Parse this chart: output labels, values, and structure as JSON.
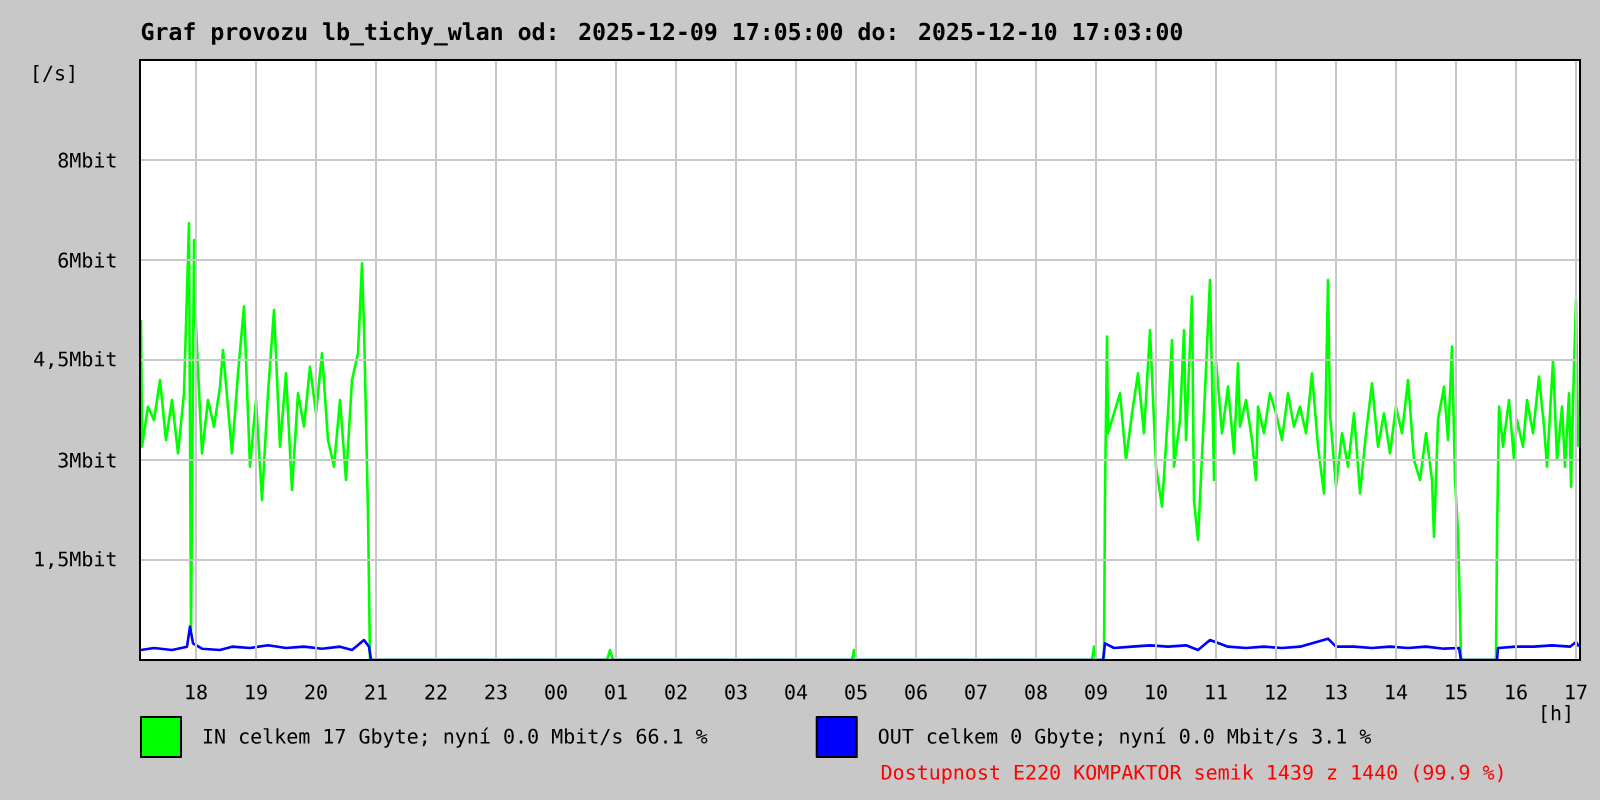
{
  "chart_data": {
    "type": "line",
    "title": "Graf provozu lb_tichy_wlan od: 2025-12-09 17:05:00 do: 2025-12-10 17:03:00",
    "xlabel": "[h]",
    "ylabel": "[/s]",
    "xlim": [
      "2025-12-09T17:04",
      "2025-12-10T17:04"
    ],
    "xticks": [
      {
        "value": "2025-12-09T18:00",
        "label": "18"
      },
      {
        "value": "2025-12-09T19:00",
        "label": "19"
      },
      {
        "value": "2025-12-09T20:00",
        "label": "20"
      },
      {
        "value": "2025-12-09T21:00",
        "label": "21"
      },
      {
        "value": "2025-12-09T22:00",
        "label": "22"
      },
      {
        "value": "2025-12-09T23:00",
        "label": "23"
      },
      {
        "value": "2025-12-10T00:00",
        "label": "00"
      },
      {
        "value": "2025-12-10T01:00",
        "label": "01"
      },
      {
        "value": "2025-12-10T02:00",
        "label": "02"
      },
      {
        "value": "2025-12-10T03:00",
        "label": "03"
      },
      {
        "value": "2025-12-10T04:00",
        "label": "04"
      },
      {
        "value": "2025-12-10T05:00",
        "label": "05"
      },
      {
        "value": "2025-12-10T06:00",
        "label": "06"
      },
      {
        "value": "2025-12-10T07:00",
        "label": "07"
      },
      {
        "value": "2025-12-10T08:00",
        "label": "08"
      },
      {
        "value": "2025-12-10T09:00",
        "label": "09"
      },
      {
        "value": "2025-12-10T10:00",
        "label": "10"
      },
      {
        "value": "2025-12-10T11:00",
        "label": "11"
      },
      {
        "value": "2025-12-10T12:00",
        "label": "12"
      },
      {
        "value": "2025-12-10T13:00",
        "label": "13"
      },
      {
        "value": "2025-12-10T14:00",
        "label": "14"
      },
      {
        "value": "2025-12-10T15:00",
        "label": "15"
      },
      {
        "value": "2025-12-10T16:00",
        "label": "16"
      },
      {
        "value": "2025-12-10T17:00",
        "label": "17"
      }
    ],
    "ylim": [
      0,
      9
    ],
    "yticks": [
      {
        "value": 1.5,
        "label": "1,5Mbit"
      },
      {
        "value": 3,
        "label": "3Mbit"
      },
      {
        "value": 4.5,
        "label": "4,5Mbit"
      },
      {
        "value": 6,
        "label": "6Mbit"
      },
      {
        "value": 7.5,
        "label": "8Mbit"
      }
    ],
    "grid": true,
    "legend": "bottom",
    "annotations": [
      "Dostupnost E220 KOMPAKTOR semik 1439 z 1440 (99.9 %)"
    ],
    "series": [
      {
        "name": "IN celkem 17 Gbyte; nyní 0.0 Mbit/s 66.1 %",
        "color": "#00ff00",
        "x": [
          "2025-12-09T17:05",
          "2025-12-09T17:06",
          "2025-12-09T17:12",
          "2025-12-09T17:18",
          "2025-12-09T17:24",
          "2025-12-09T17:30",
          "2025-12-09T17:36",
          "2025-12-09T17:42",
          "2025-12-09T17:48",
          "2025-12-09T17:53",
          "2025-12-09T17:55",
          "2025-12-09T17:58",
          "2025-12-09T18:00",
          "2025-12-09T18:06",
          "2025-12-09T18:12",
          "2025-12-09T18:18",
          "2025-12-09T18:24",
          "2025-12-09T18:27",
          "2025-12-09T18:36",
          "2025-12-09T18:42",
          "2025-12-09T18:48",
          "2025-12-09T18:54",
          "2025-12-09T19:00",
          "2025-12-09T19:06",
          "2025-12-09T19:12",
          "2025-12-09T19:18",
          "2025-12-09T19:24",
          "2025-12-09T19:30",
          "2025-12-09T19:36",
          "2025-12-09T19:42",
          "2025-12-09T19:48",
          "2025-12-09T19:54",
          "2025-12-09T20:00",
          "2025-12-09T20:06",
          "2025-12-09T20:12",
          "2025-12-09T20:18",
          "2025-12-09T20:24",
          "2025-12-09T20:30",
          "2025-12-09T20:36",
          "2025-12-09T20:42",
          "2025-12-09T20:46",
          "2025-12-09T20:48",
          "2025-12-09T20:52",
          "2025-12-09T20:54",
          "2025-12-10T00:51",
          "2025-12-10T00:54",
          "2025-12-10T00:57",
          "2025-12-10T04:56",
          "2025-12-10T04:58",
          "2025-12-10T05:00",
          "2025-12-10T08:56",
          "2025-12-10T08:58",
          "2025-12-10T09:00",
          "2025-12-10T09:08",
          "2025-12-10T09:09",
          "2025-12-10T09:11",
          "2025-12-10T09:12",
          "2025-12-10T09:18",
          "2025-12-10T09:24",
          "2025-12-10T09:30",
          "2025-12-10T09:36",
          "2025-12-10T09:42",
          "2025-12-10T09:48",
          "2025-12-10T09:54",
          "2025-12-10T10:00",
          "2025-12-10T10:06",
          "2025-12-10T10:12",
          "2025-12-10T10:16",
          "2025-12-10T10:18",
          "2025-12-10T10:24",
          "2025-12-10T10:28",
          "2025-12-10T10:30",
          "2025-12-10T10:36",
          "2025-12-10T10:38",
          "2025-12-10T10:42",
          "2025-12-10T10:48",
          "2025-12-10T10:54",
          "2025-12-10T10:58",
          "2025-12-10T11:00",
          "2025-12-10T11:06",
          "2025-12-10T11:12",
          "2025-12-10T11:18",
          "2025-12-10T11:22",
          "2025-12-10T11:24",
          "2025-12-10T11:30",
          "2025-12-10T11:36",
          "2025-12-10T11:40",
          "2025-12-10T11:42",
          "2025-12-10T11:48",
          "2025-12-10T11:54",
          "2025-12-10T12:00",
          "2025-12-10T12:06",
          "2025-12-10T12:12",
          "2025-12-10T12:18",
          "2025-12-10T12:24",
          "2025-12-10T12:30",
          "2025-12-10T12:36",
          "2025-12-10T12:42",
          "2025-12-10T12:48",
          "2025-12-10T12:52",
          "2025-12-10T12:54",
          "2025-12-10T13:00",
          "2025-12-10T13:06",
          "2025-12-10T13:12",
          "2025-12-10T13:18",
          "2025-12-10T13:24",
          "2025-12-10T13:30",
          "2025-12-10T13:36",
          "2025-12-10T13:42",
          "2025-12-10T13:48",
          "2025-12-10T13:54",
          "2025-12-10T14:00",
          "2025-12-10T14:06",
          "2025-12-10T14:12",
          "2025-12-10T14:18",
          "2025-12-10T14:24",
          "2025-12-10T14:30",
          "2025-12-10T14:36",
          "2025-12-10T14:38",
          "2025-12-10T14:42",
          "2025-12-10T14:48",
          "2025-12-10T14:52",
          "2025-12-10T14:56",
          "2025-12-10T14:59",
          "2025-12-10T15:02",
          "2025-12-10T15:04",
          "2025-12-10T15:05",
          "2025-12-10T15:40",
          "2025-12-10T15:41",
          "2025-12-10T15:43",
          "2025-12-10T15:47",
          "2025-12-10T15:53",
          "2025-12-10T15:58",
          "2025-12-10T16:01",
          "2025-12-10T16:07",
          "2025-12-10T16:11",
          "2025-12-10T16:17",
          "2025-12-10T16:23",
          "2025-12-10T16:28",
          "2025-12-10T16:31",
          "2025-12-10T16:37",
          "2025-12-10T16:41",
          "2025-12-10T16:46",
          "2025-12-10T16:49",
          "2025-12-10T16:53",
          "2025-12-10T16:55",
          "2025-12-10T16:58",
          "2025-12-10T17:00",
          "2025-12-10T17:02"
        ],
        "values": [
          5.1,
          3.2,
          3.8,
          3.6,
          4.2,
          3.3,
          3.9,
          3.1,
          4.0,
          6.55,
          0.45,
          6.3,
          5.0,
          3.1,
          3.9,
          3.5,
          4.1,
          4.65,
          3.1,
          4.3,
          5.3,
          2.9,
          3.9,
          2.4,
          4.0,
          5.25,
          3.2,
          4.3,
          2.55,
          4.0,
          3.5,
          4.4,
          3.7,
          4.6,
          3.3,
          2.9,
          3.9,
          2.7,
          4.2,
          4.6,
          5.95,
          5.0,
          2.2,
          0,
          0,
          0.15,
          0,
          0,
          0.15,
          0,
          0,
          0.2,
          0,
          0,
          2.5,
          4.85,
          3.4,
          3.7,
          4.0,
          3.0,
          3.7,
          4.3,
          3.4,
          4.95,
          2.9,
          2.3,
          3.7,
          4.8,
          2.9,
          3.6,
          4.95,
          3.3,
          5.45,
          2.4,
          1.8,
          3.7,
          5.7,
          2.7,
          4.5,
          3.4,
          4.1,
          3.1,
          4.45,
          3.5,
          3.9,
          3.3,
          2.7,
          3.8,
          3.4,
          4.0,
          3.7,
          3.3,
          4.0,
          3.5,
          3.8,
          3.4,
          4.3,
          3.2,
          2.5,
          5.7,
          3.7,
          2.6,
          3.4,
          2.9,
          3.7,
          2.5,
          3.4,
          4.15,
          3.2,
          3.7,
          3.1,
          3.8,
          3.4,
          4.2,
          3.0,
          2.7,
          3.4,
          2.7,
          1.85,
          3.6,
          4.1,
          3.3,
          4.7,
          2.7,
          1.9,
          0.7,
          0,
          0,
          1.85,
          3.8,
          3.2,
          3.9,
          3.0,
          3.6,
          3.2,
          3.9,
          3.4,
          4.25,
          3.5,
          2.9,
          4.5,
          3.0,
          3.8,
          2.9,
          4.0,
          2.6,
          4.4,
          5.4,
          3.2
        ]
      },
      {
        "name": "OUT celkem 0 Gbyte; nyní 0.0 Mbit/s 3.1 %",
        "color": "#0000ff",
        "x": [
          "2025-12-09T17:05",
          "2025-12-09T17:18",
          "2025-12-09T17:36",
          "2025-12-09T17:51",
          "2025-12-09T17:54",
          "2025-12-09T17:57",
          "2025-12-09T18:06",
          "2025-12-09T18:24",
          "2025-12-09T18:36",
          "2025-12-09T18:54",
          "2025-12-09T19:12",
          "2025-12-09T19:30",
          "2025-12-09T19:48",
          "2025-12-09T20:06",
          "2025-12-09T20:24",
          "2025-12-09T20:36",
          "2025-12-09T20:48",
          "2025-12-09T20:53",
          "2025-12-09T20:55",
          "2025-12-10T09:07",
          "2025-12-10T09:09",
          "2025-12-10T09:18",
          "2025-12-10T09:36",
          "2025-12-10T09:54",
          "2025-12-10T10:12",
          "2025-12-10T10:30",
          "2025-12-10T10:42",
          "2025-12-10T10:54",
          "2025-12-10T11:12",
          "2025-12-10T11:30",
          "2025-12-10T11:48",
          "2025-12-10T12:06",
          "2025-12-10T12:24",
          "2025-12-10T12:52",
          "2025-12-10T13:00",
          "2025-12-10T13:18",
          "2025-12-10T13:36",
          "2025-12-10T13:54",
          "2025-12-10T14:12",
          "2025-12-10T14:30",
          "2025-12-10T14:48",
          "2025-12-10T15:03",
          "2025-12-10T15:05",
          "2025-12-10T15:41",
          "2025-12-10T15:42",
          "2025-12-10T16:00",
          "2025-12-10T16:18",
          "2025-12-10T16:36",
          "2025-12-10T16:54",
          "2025-12-10T17:00",
          "2025-12-10T17:03"
        ],
        "values": [
          0.15,
          0.18,
          0.15,
          0.2,
          0.5,
          0.25,
          0.17,
          0.15,
          0.2,
          0.18,
          0.22,
          0.18,
          0.2,
          0.17,
          0.2,
          0.15,
          0.3,
          0.2,
          0,
          0,
          0.25,
          0.18,
          0.2,
          0.22,
          0.2,
          0.22,
          0.15,
          0.3,
          0.2,
          0.18,
          0.2,
          0.18,
          0.2,
          0.32,
          0.2,
          0.2,
          0.18,
          0.2,
          0.18,
          0.2,
          0.17,
          0.18,
          0,
          0,
          0.18,
          0.2,
          0.2,
          0.22,
          0.2,
          0.27,
          0.2
        ]
      }
    ]
  }
}
